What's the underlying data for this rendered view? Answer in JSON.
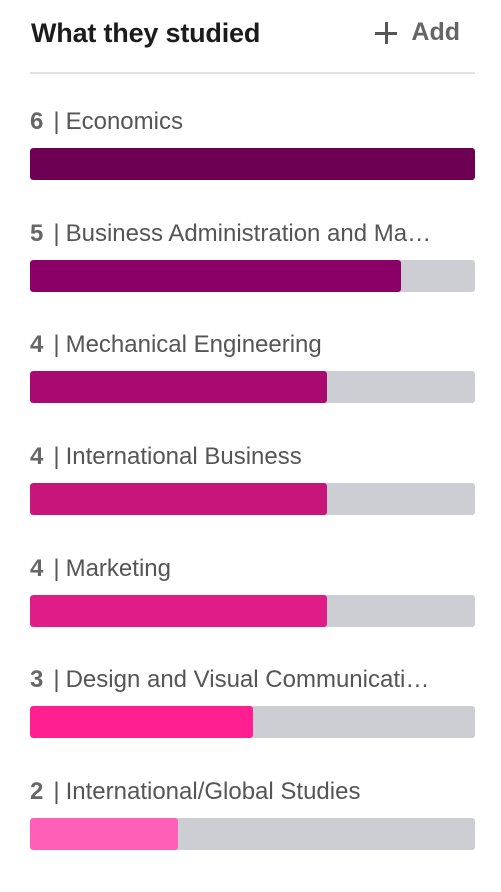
{
  "header": {
    "title": "What they studied",
    "add_label": "Add"
  },
  "max_count": 6,
  "items": [
    {
      "count": "6",
      "name": "Economics",
      "color": "#6e0054"
    },
    {
      "count": "5",
      "name": "Business Administration and Ma…",
      "color": "#8a0066"
    },
    {
      "count": "4",
      "name": "Mechanical Engineering",
      "color": "#a80a70"
    },
    {
      "count": "4",
      "name": "International Business",
      "color": "#c7157a"
    },
    {
      "count": "4",
      "name": "Marketing",
      "color": "#e01d86"
    },
    {
      "count": "3",
      "name": "Design and Visual Communicati…",
      "color": "#ff1f91"
    },
    {
      "count": "2",
      "name": "International/Global Studies",
      "color": "#ff5fb6"
    }
  ]
}
